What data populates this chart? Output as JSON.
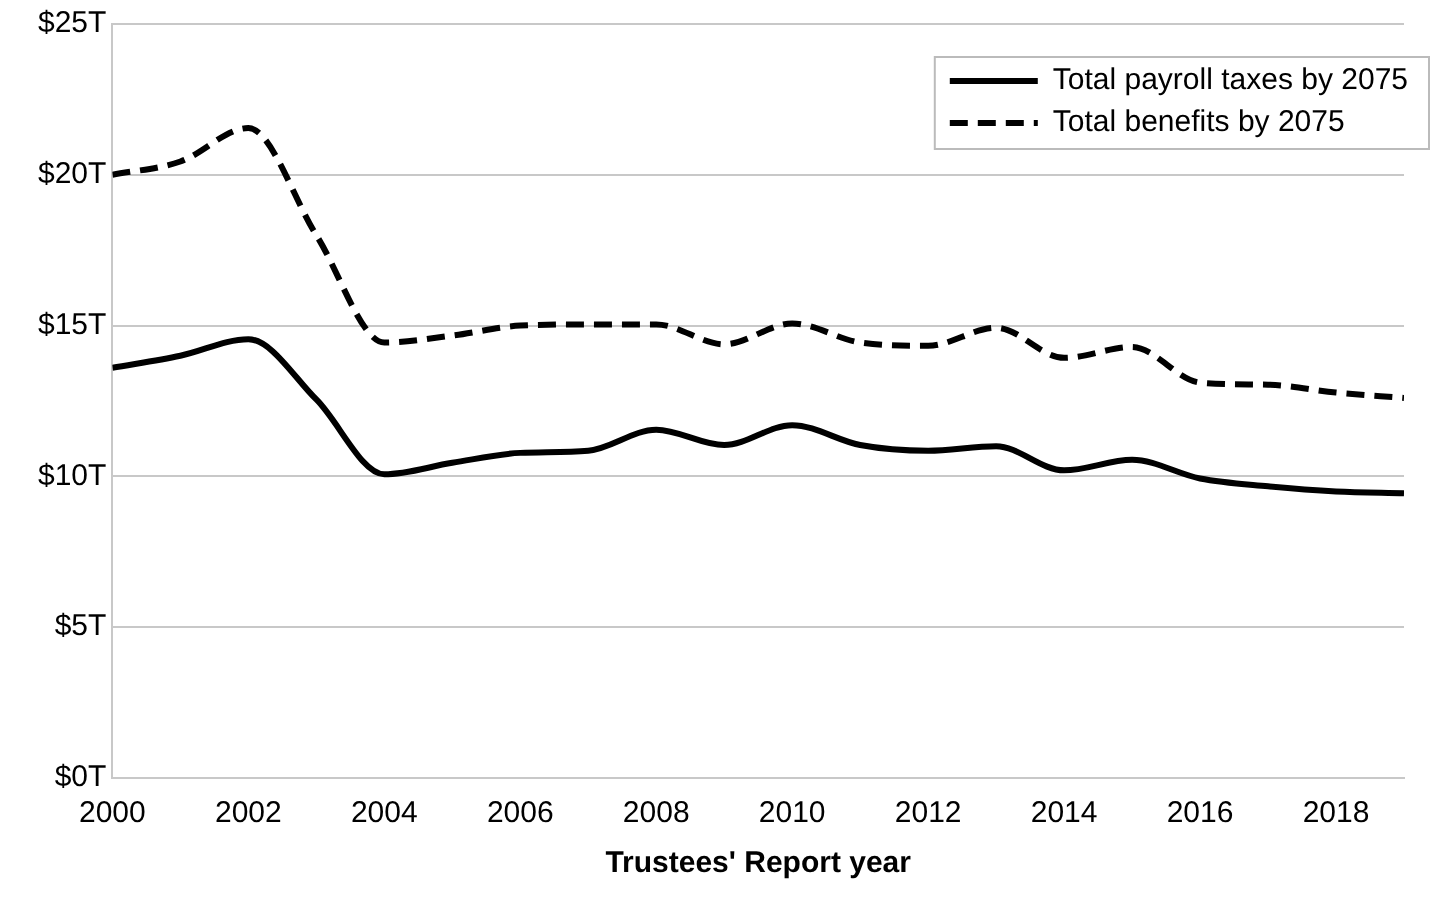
{
  "chart_data": {
    "type": "line",
    "xlabel": "Trustees' Report year",
    "x": [
      2000,
      2001,
      2002,
      2003,
      2004,
      2005,
      2006,
      2007,
      2008,
      2009,
      2010,
      2011,
      2012,
      2013,
      2014,
      2015,
      2016,
      2017,
      2018,
      2019
    ],
    "series": [
      {
        "name": "Total payroll taxes by 2075",
        "color": "#000000",
        "line_style": "solid",
        "values": [
          13.6,
          14.0,
          14.55,
          12.55,
          10.07,
          10.45,
          10.78,
          10.85,
          11.55,
          11.04,
          11.7,
          11.04,
          10.85,
          11.0,
          10.2,
          10.55,
          9.93,
          9.67,
          9.5,
          9.44
        ]
      },
      {
        "name": "Total benefits by 2075",
        "color": "#000000",
        "line_style": "dashed",
        "values": [
          20.0,
          20.44,
          21.55,
          18.0,
          14.44,
          14.67,
          15.0,
          15.04,
          15.04,
          14.38,
          15.07,
          14.44,
          14.33,
          14.93,
          13.93,
          14.29,
          13.11,
          13.04,
          12.78,
          12.6
        ]
      }
    ],
    "xlim": [
      2000,
      2019
    ],
    "xticks": [
      2000,
      2002,
      2004,
      2006,
      2008,
      2010,
      2012,
      2014,
      2016,
      2018
    ],
    "ylim": [
      0,
      25
    ],
    "yticks": [
      {
        "value": 0,
        "label": "$0T"
      },
      {
        "value": 5,
        "label": "$5T"
      },
      {
        "value": 10,
        "label": "$10T"
      },
      {
        "value": 15,
        "label": "$15T"
      },
      {
        "value": 20,
        "label": "$20T"
      },
      {
        "value": 25,
        "label": "$25T"
      }
    ],
    "grid": "y",
    "legend": "top right",
    "marker": "none"
  }
}
